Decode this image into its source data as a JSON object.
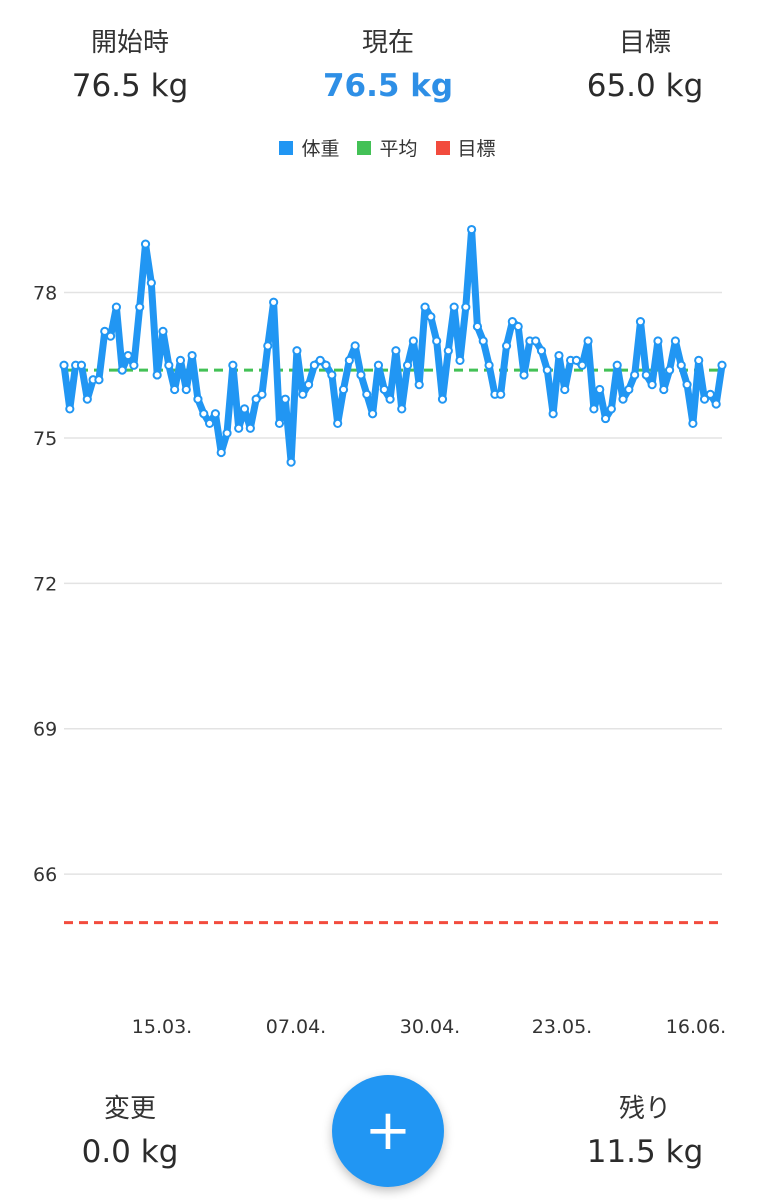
{
  "stats": {
    "start": {
      "label": "開始時",
      "value": "76.5 kg"
    },
    "current": {
      "label": "現在",
      "value": "76.5 kg"
    },
    "goal": {
      "label": "目標",
      "value": "65.0 kg"
    },
    "change": {
      "label": "変更",
      "value": "0.0 kg"
    },
    "remain": {
      "label": "残り",
      "value": "11.5 kg"
    }
  },
  "legend": [
    {
      "label": "体重",
      "color": "#2196f3"
    },
    {
      "label": "平均",
      "color": "#43c156"
    },
    {
      "label": "目標",
      "color": "#f24b3d"
    }
  ],
  "fab": {
    "icon": "plus-icon",
    "label": "+"
  },
  "chart_data": {
    "type": "line",
    "ylim": [
      64.6,
      79.6
    ],
    "yticks": [
      66,
      69,
      72,
      75,
      78
    ],
    "xticks": [
      "15.03.",
      "07.04.",
      "30.04.",
      "23.05.",
      "16.06."
    ],
    "average": 76.4,
    "goal": 65.0,
    "series": [
      {
        "name": "体重",
        "values": [
          76.5,
          75.6,
          76.5,
          76.5,
          75.8,
          76.2,
          76.2,
          77.2,
          77.1,
          77.7,
          76.4,
          76.7,
          76.5,
          77.7,
          79.0,
          78.2,
          76.3,
          77.2,
          76.5,
          76.0,
          76.6,
          76.0,
          76.7,
          75.8,
          75.5,
          75.3,
          75.5,
          74.7,
          75.1,
          76.5,
          75.2,
          75.6,
          75.2,
          75.8,
          75.9,
          76.9,
          77.8,
          75.3,
          75.8,
          74.5,
          76.8,
          75.9,
          76.1,
          76.5,
          76.6,
          76.5,
          76.3,
          75.3,
          76.0,
          76.6,
          76.9,
          76.3,
          75.9,
          75.5,
          76.5,
          76.0,
          75.8,
          76.8,
          75.6,
          76.5,
          77.0,
          76.1,
          77.7,
          77.5,
          77.0,
          75.8,
          76.8,
          77.7,
          76.6,
          77.7,
          79.3,
          77.3,
          77.0,
          76.5,
          75.9,
          75.9,
          76.9,
          77.4,
          77.3,
          76.3,
          77.0,
          77.0,
          76.8,
          76.4,
          75.5,
          76.7,
          76.0,
          76.6,
          76.6,
          76.5,
          77.0,
          75.6,
          76.0,
          75.4,
          75.6,
          76.5,
          75.8,
          76.0,
          76.3,
          77.4,
          76.3,
          76.1,
          77.0,
          76.0,
          76.4,
          77.0,
          76.5,
          76.1,
          75.3,
          76.6,
          75.8,
          75.9,
          75.7,
          76.5
        ]
      }
    ]
  }
}
